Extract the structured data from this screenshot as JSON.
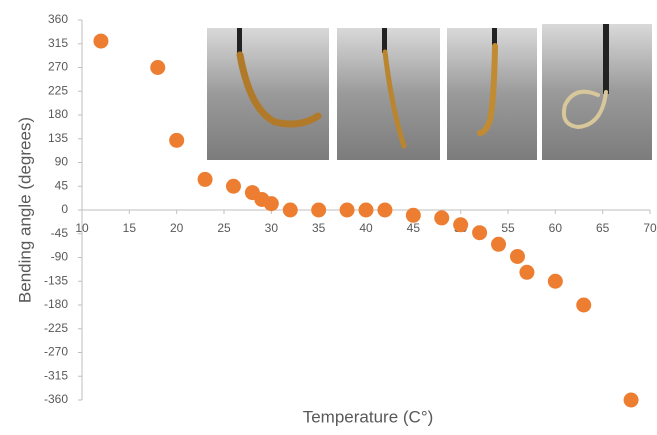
{
  "chart_data": {
    "type": "scatter",
    "x_label": "Temperature (C°)",
    "y_label": "Bending angle (degrees)",
    "x": [
      12,
      18,
      20,
      23,
      26,
      28,
      29,
      30,
      32,
      35,
      38,
      40,
      42,
      45,
      48,
      50,
      52,
      54,
      56,
      57,
      60,
      63,
      68
    ],
    "series": [
      {
        "color": "#ed7d31",
        "values": [
          320,
          270,
          132,
          58,
          45,
          33,
          20,
          12,
          0,
          0,
          0,
          0,
          0,
          -10,
          -15,
          -28,
          -43,
          -65,
          -88,
          -118,
          -135,
          -180,
          -360
        ]
      }
    ],
    "xlim": [
      10,
      70
    ],
    "xticks": [
      10,
      15,
      20,
      25,
      30,
      35,
      40,
      45,
      50,
      55,
      60,
      65,
      70
    ],
    "ylim": [
      -360,
      360
    ],
    "yticks": [
      360,
      315,
      270,
      225,
      180,
      135,
      90,
      45,
      0,
      -45,
      -90,
      -135,
      -180,
      -225,
      -270,
      -315,
      -360
    ],
    "grid": false
  }
}
